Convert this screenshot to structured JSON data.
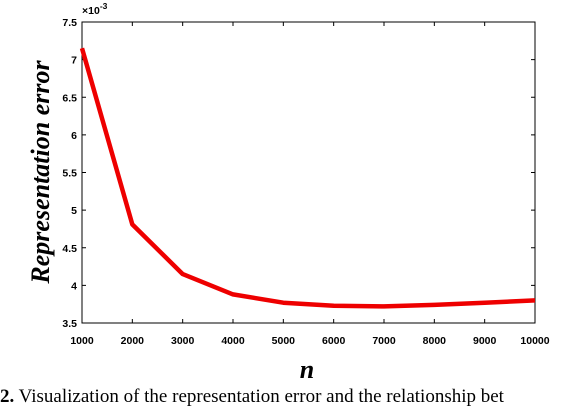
{
  "chart_data": {
    "type": "line",
    "xlabel": "n",
    "ylabel": "Representation error",
    "y_multiplier": "×10-3",
    "xlim": [
      1000,
      10000
    ],
    "ylim": [
      3.5,
      7.5
    ],
    "xticks": [
      1000,
      2000,
      3000,
      4000,
      5000,
      6000,
      7000,
      8000,
      9000,
      10000
    ],
    "yticks": [
      3.5,
      4,
      4.5,
      5,
      5.5,
      6,
      6.5,
      7,
      7.5
    ],
    "grid": false,
    "series": [
      {
        "color": "#ee0000",
        "x": [
          1000,
          2000,
          3000,
          4000,
          5000,
          6000,
          7000,
          8000,
          9000,
          10000
        ],
        "y": [
          7.15,
          4.81,
          4.15,
          3.88,
          3.77,
          3.73,
          3.72,
          3.74,
          3.77,
          3.8
        ]
      }
    ]
  },
  "caption": {
    "number": "2.",
    "text": " Visualization of the representation error and the relationship bet"
  }
}
